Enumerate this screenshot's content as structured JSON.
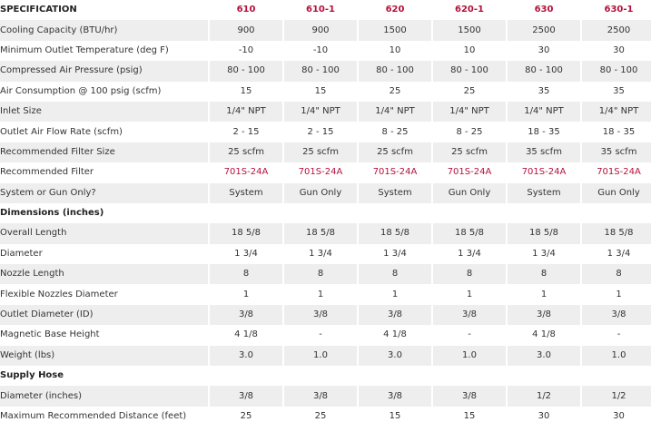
{
  "header": {
    "label": "SPECIFICATION",
    "models": [
      "610",
      "610-1",
      "620",
      "620-1",
      "630",
      "630-1"
    ]
  },
  "sections": [
    {
      "title": "",
      "rows": [
        {
          "label": "Cooling Capacity (BTU/hr)",
          "values": [
            "900",
            "900",
            "1500",
            "1500",
            "2500",
            "2500"
          ]
        },
        {
          "label": "Minimum Outlet Temperature (deg F)",
          "values": [
            "-10",
            "-10",
            "10",
            "10",
            "30",
            "30"
          ]
        },
        {
          "label": "Compressed Air Pressure (psig)",
          "values": [
            "80 - 100",
            "80 - 100",
            "80 - 100",
            "80 - 100",
            "80 - 100",
            "80 - 100"
          ]
        },
        {
          "label": "Air Consumption @ 100 psig (scfm)",
          "values": [
            "15",
            "15",
            "25",
            "25",
            "35",
            "35"
          ]
        },
        {
          "label": "Inlet Size",
          "values": [
            "1/4\" NPT",
            "1/4\" NPT",
            "1/4\" NPT",
            "1/4\" NPT",
            "1/4\" NPT",
            "1/4\" NPT"
          ]
        },
        {
          "label": "Outlet Air Flow Rate (scfm)",
          "values": [
            "2 - 15",
            "2 - 15",
            "8 - 25",
            "8 - 25",
            "18 - 35",
            "18 - 35"
          ]
        },
        {
          "label": "Recommended Filter Size",
          "values": [
            "25 scfm",
            "25 scfm",
            "25 scfm",
            "25 scfm",
            "35 scfm",
            "35 scfm"
          ]
        },
        {
          "label": "Recommended Filter",
          "link": true,
          "values": [
            "701S-24A",
            "701S-24A",
            "701S-24A",
            "701S-24A",
            "701S-24A",
            "701S-24A"
          ]
        },
        {
          "label": "System or Gun Only?",
          "values": [
            "System",
            "Gun Only",
            "System",
            "Gun Only",
            "System",
            "Gun Only"
          ]
        }
      ]
    },
    {
      "title": "Dimensions (inches)",
      "rows": [
        {
          "label": "Overall Length",
          "values": [
            "18 5/8",
            "18 5/8",
            "18 5/8",
            "18 5/8",
            "18 5/8",
            "18 5/8"
          ]
        },
        {
          "label": "Diameter",
          "values": [
            "1 3/4",
            "1 3/4",
            "1 3/4",
            "1 3/4",
            "1 3/4",
            "1 3/4"
          ]
        },
        {
          "label": "Nozzle Length",
          "values": [
            "8",
            "8",
            "8",
            "8",
            "8",
            "8"
          ]
        },
        {
          "label": "Flexible Nozzles Diameter",
          "values": [
            "1",
            "1",
            "1",
            "1",
            "1",
            "1"
          ]
        },
        {
          "label": "Outlet Diameter (ID)",
          "values": [
            "3/8",
            "3/8",
            "3/8",
            "3/8",
            "3/8",
            "3/8"
          ]
        },
        {
          "label": "Magnetic Base Height",
          "values": [
            "4 1/8",
            "-",
            "4 1/8",
            "-",
            "4 1/8",
            "-"
          ]
        },
        {
          "label": "Weight (lbs)",
          "values": [
            "3.0",
            "1.0",
            "3.0",
            "1.0",
            "3.0",
            "1.0"
          ]
        }
      ]
    },
    {
      "title": "Supply Hose",
      "rows": [
        {
          "label": "Diameter (inches)",
          "values": [
            "3/8",
            "3/8",
            "3/8",
            "3/8",
            "1/2",
            "1/2"
          ]
        },
        {
          "label": "Maximum Recommended Distance (feet)",
          "values": [
            "25",
            "25",
            "15",
            "15",
            "30",
            "30"
          ]
        }
      ]
    }
  ]
}
